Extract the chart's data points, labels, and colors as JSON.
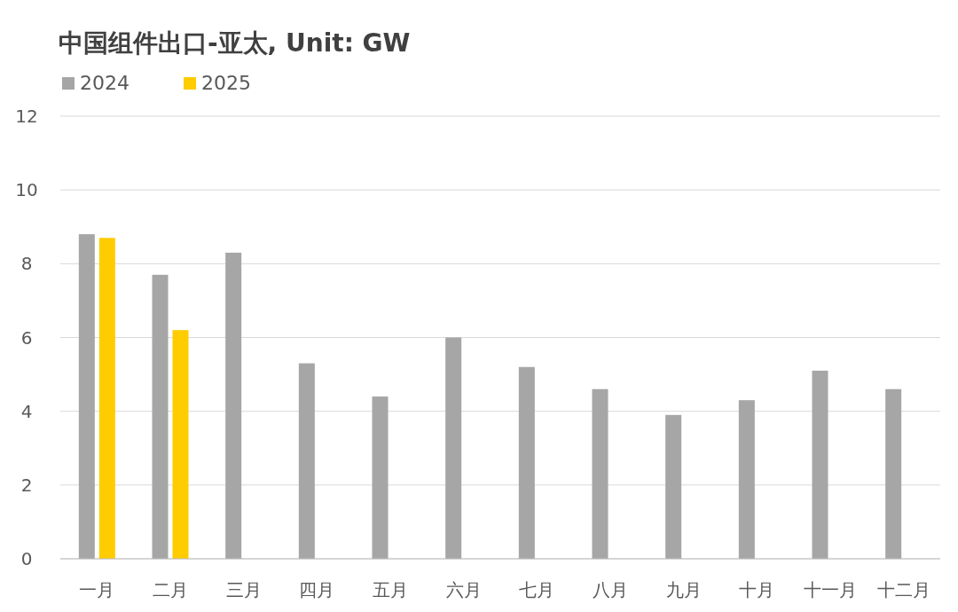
{
  "chart_data": {
    "type": "bar",
    "title": "中国组件出口-亚太, Unit: GW",
    "categories": [
      "一月",
      "二月",
      "三月",
      "四月",
      "五月",
      "六月",
      "七月",
      "八月",
      "九月",
      "十月",
      "十一月",
      "十二月"
    ],
    "series": [
      {
        "name": "2024",
        "color": "#a6a6a6",
        "values": [
          8.8,
          7.7,
          8.3,
          5.3,
          4.4,
          6.0,
          5.2,
          4.6,
          3.9,
          4.3,
          5.1,
          4.6
        ]
      },
      {
        "name": "2025",
        "color": "#ffcc00",
        "values": [
          8.7,
          6.2,
          null,
          null,
          null,
          null,
          null,
          null,
          null,
          null,
          null,
          null
        ]
      }
    ],
    "ylim": [
      0,
      12
    ],
    "yticks": [
      0,
      2,
      4,
      6,
      8,
      10,
      12
    ],
    "grid": "y",
    "legend": "top left"
  }
}
